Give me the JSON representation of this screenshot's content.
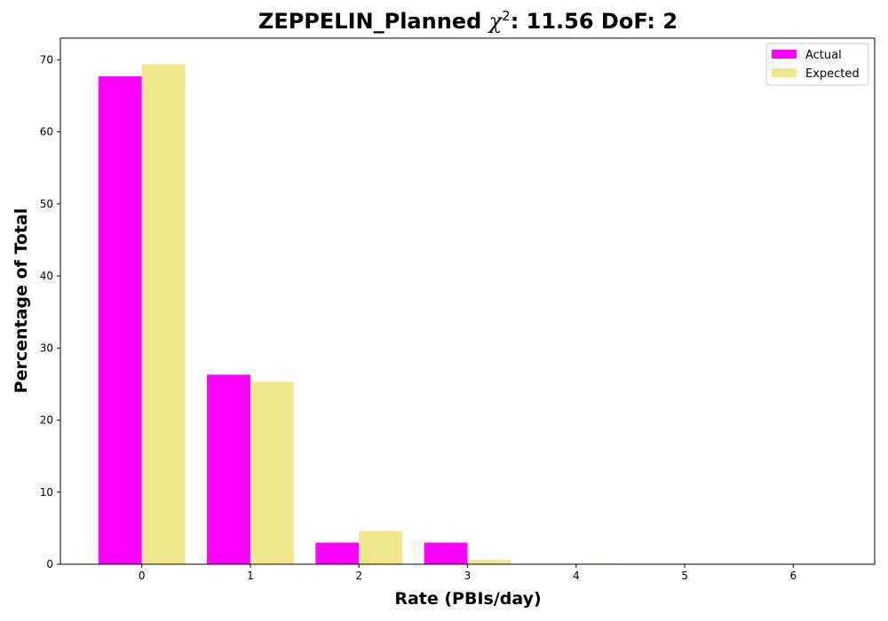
{
  "chart_data": {
    "type": "bar",
    "title_main": "ZEPPELIN_Planned ",
    "title_chi": "χ",
    "title_sup": "2",
    "title_rest": ": 11.56 DoF: 2",
    "xlabel": "Rate (PBIs/day)",
    "ylabel": "Percentage of Total",
    "categories": [
      "0",
      "1",
      "2",
      "3",
      "4",
      "5",
      "6"
    ],
    "yticks": [
      "0",
      "10",
      "20",
      "30",
      "40",
      "50",
      "60",
      "70"
    ],
    "ylim": [
      0,
      73
    ],
    "xlim": [
      -0.75,
      6.75
    ],
    "grid": false,
    "legend_position": "top-right",
    "series": [
      {
        "name": "Actual",
        "color": "#ff00ff",
        "values": [
          67.7,
          26.3,
          3.0,
          3.0,
          0.0,
          0.0,
          0.0
        ]
      },
      {
        "name": "Expected",
        "color": "#f0e68c",
        "values": [
          69.4,
          25.3,
          4.6,
          0.6,
          0.1,
          0.0,
          0.0
        ]
      }
    ]
  }
}
